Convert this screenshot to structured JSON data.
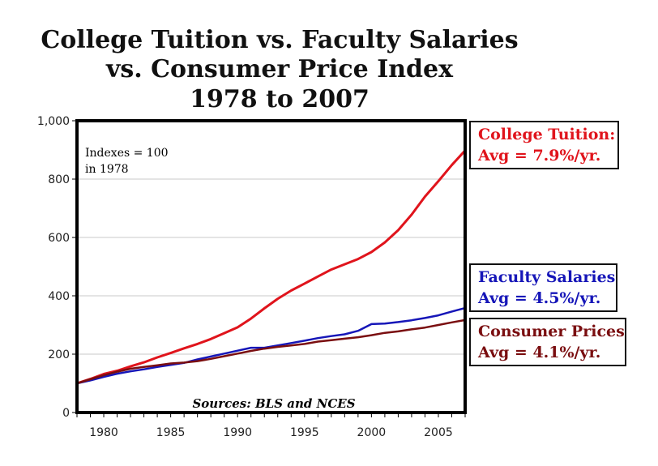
{
  "title": {
    "line1": "College Tuition vs. Faculty Salaries",
    "line2": "vs. Consumer Price Index",
    "line3": "1978 to 2007"
  },
  "note": {
    "line1": "Indexes = 100",
    "line2": "in 1978"
  },
  "source": "Sources: BLS and NCES",
  "legend": {
    "tuition": {
      "name": "College Tuition:",
      "avg": "Avg = 7.9%/yr.",
      "color": "#e0141c"
    },
    "faculty": {
      "name": "Faculty Salaries",
      "avg": "Avg = 4.5%/yr.",
      "color": "#1616b8"
    },
    "cpi": {
      "name": "Consumer Prices",
      "avg": "Avg = 4.1%/yr.",
      "color": "#7a0e10"
    }
  },
  "chart_data": {
    "type": "line",
    "title": "College Tuition vs. Faculty Salaries vs. Consumer Price Index 1978 to 2007",
    "xlabel": "",
    "ylabel": "",
    "xlim": [
      1978,
      2007
    ],
    "ylim": [
      0,
      1000
    ],
    "grid": true,
    "x_ticks": [
      1980,
      1985,
      1990,
      1995,
      2000,
      2005
    ],
    "y_ticks": [
      0,
      200,
      400,
      600,
      800,
      1000
    ],
    "y_tick_labels": [
      "0",
      "200",
      "400",
      "600",
      "800",
      "1,000"
    ],
    "x": [
      1978,
      1979,
      1980,
      1981,
      1982,
      1983,
      1984,
      1985,
      1986,
      1987,
      1988,
      1989,
      1990,
      1991,
      1992,
      1993,
      1994,
      1995,
      1996,
      1997,
      1998,
      1999,
      2000,
      2001,
      2002,
      2003,
      2004,
      2005,
      2006,
      2007
    ],
    "series": [
      {
        "name": "College Tuition",
        "color": "#e0141c",
        "values": [
          100,
          115,
          132,
          143,
          158,
          172,
          189,
          204,
          220,
          235,
          252,
          272,
          292,
          322,
          357,
          390,
          418,
          442,
          466,
          490,
          508,
          526,
          550,
          583,
          625,
          678,
          740,
          793,
          848,
          898
        ]
      },
      {
        "name": "Faculty Salaries",
        "color": "#1616b8",
        "values": [
          100,
          110,
          122,
          133,
          141,
          148,
          156,
          163,
          170,
          182,
          192,
          202,
          212,
          222,
          222,
          230,
          238,
          246,
          255,
          262,
          268,
          280,
          303,
          305,
          310,
          316,
          324,
          333,
          346,
          358
        ]
      },
      {
        "name": "Consumer Prices",
        "color": "#7a0e10",
        "values": [
          100,
          114,
          128,
          140,
          150,
          156,
          162,
          168,
          171,
          176,
          184,
          193,
          202,
          211,
          219,
          225,
          230,
          235,
          243,
          248,
          253,
          258,
          265,
          273,
          278,
          285,
          291,
          300,
          309,
          317
        ]
      }
    ]
  }
}
